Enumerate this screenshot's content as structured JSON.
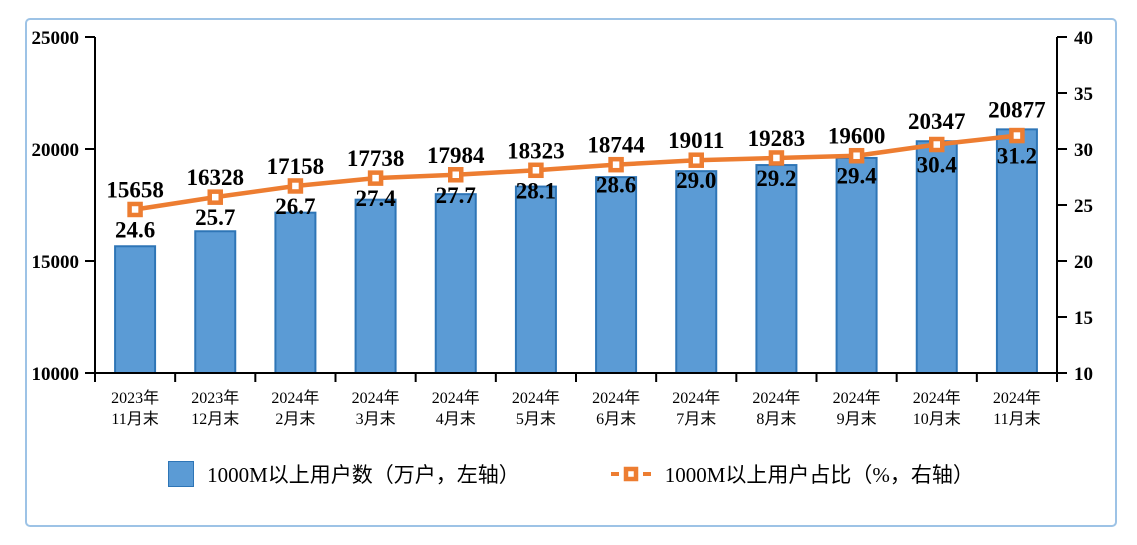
{
  "frame": {
    "border_color": "#9DC3E6",
    "background": "#ffffff"
  },
  "chart_data": {
    "type": "bar+line",
    "title": "",
    "grid": false,
    "legend_position": "bottom",
    "categories": [
      {
        "line1": "2023年",
        "line2": "11月末"
      },
      {
        "line1": "2023年",
        "line2": "12月末"
      },
      {
        "line1": "2024年",
        "line2": "2月末"
      },
      {
        "line1": "2024年",
        "line2": "3月末"
      },
      {
        "line1": "2024年",
        "line2": "4月末"
      },
      {
        "line1": "2024年",
        "line2": "5月末"
      },
      {
        "line1": "2024年",
        "line2": "6月末"
      },
      {
        "line1": "2024年",
        "line2": "7月末"
      },
      {
        "line1": "2024年",
        "line2": "8月末"
      },
      {
        "line1": "2024年",
        "line2": "9月末"
      },
      {
        "line1": "2024年",
        "line2": "10月末"
      },
      {
        "line1": "2024年",
        "line2": "11月末"
      }
    ],
    "series": [
      {
        "name": "1000M以上用户数（万户，左轴）",
        "type": "bar",
        "axis": "left",
        "color": "#5B9BD5",
        "border_color": "#2E75B6",
        "values": [
          15658,
          16328,
          17158,
          17738,
          17984,
          18323,
          18744,
          19011,
          19283,
          19600,
          20347,
          20877
        ]
      },
      {
        "name": "1000M以上用户占比（%，右轴）",
        "type": "line",
        "axis": "right",
        "color": "#ED7D31",
        "marker": "square",
        "values": [
          24.6,
          25.7,
          26.7,
          27.4,
          27.7,
          28.1,
          28.6,
          29.0,
          29.2,
          29.4,
          30.4,
          31.2
        ]
      }
    ],
    "left_axis": {
      "min": 10000,
      "max": 25000,
      "step": 5000,
      "ticks": [
        10000,
        15000,
        20000,
        25000
      ]
    },
    "right_axis": {
      "min": 10,
      "max": 40,
      "step": 5,
      "ticks": [
        10,
        15,
        20,
        25,
        30,
        35,
        40
      ]
    }
  }
}
